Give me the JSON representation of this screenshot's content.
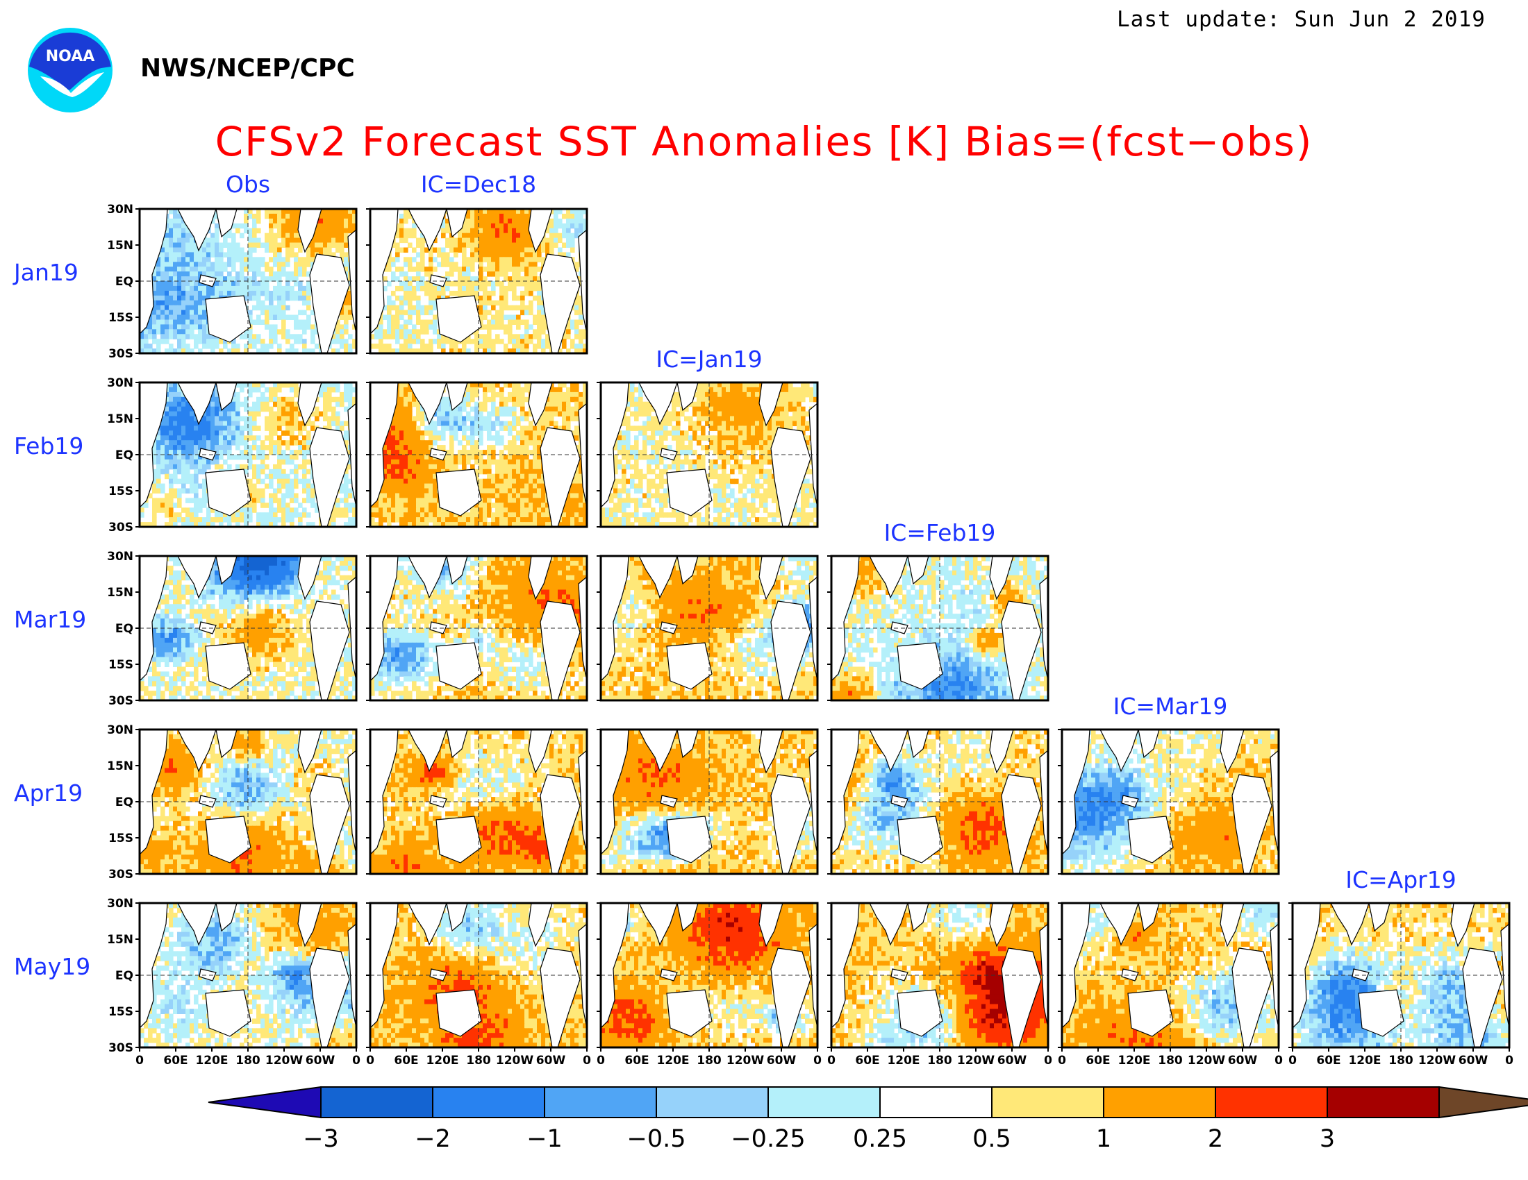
{
  "header": {
    "last_update": "Last update: Sun Jun 2 2019",
    "agency": "NWS/NCEP/CPC",
    "logo_text": "NOAA",
    "title": "CFSv2 Forecast SST Anomalies [K] Bias=(fcst−obs)"
  },
  "columns": [
    "Obs",
    "IC=Dec18",
    "IC=Jan19",
    "IC=Feb19",
    "IC=Mar19",
    "IC=Apr19"
  ],
  "rows": [
    "Jan19",
    "Feb19",
    "Mar19",
    "Apr19",
    "May19"
  ],
  "lat_ticks": [
    "30N",
    "15N",
    "EQ",
    "15S",
    "30S"
  ],
  "lon_ticks": [
    "0",
    "60E",
    "120E",
    "180",
    "120W",
    "60W",
    "0"
  ],
  "colorbar": {
    "unit": "K",
    "tick_labels": [
      "−3",
      "−2",
      "−1",
      "−0.5",
      "−0.25",
      "0.25",
      "0.5",
      "1",
      "2",
      "3"
    ],
    "colors": [
      "#1e0ab4",
      "#1464d2",
      "#2882f0",
      "#50a5f5",
      "#96d2fa",
      "#b4f0fa",
      "#ffffff",
      "#ffe878",
      "#ffa000",
      "#ff3200",
      "#a50000",
      "#6e4628"
    ]
  },
  "panels": [
    {
      "row": "Jan19",
      "col": "Obs",
      "seed": 11,
      "bias": 0.25
    },
    {
      "row": "Jan19",
      "col": "IC=Dec18",
      "seed": 12,
      "bias": 0.6
    },
    {
      "row": "Feb19",
      "col": "Obs",
      "seed": 21,
      "bias": 0.3
    },
    {
      "row": "Feb19",
      "col": "IC=Dec18",
      "seed": 22,
      "bias": 0.85
    },
    {
      "row": "Feb19",
      "col": "IC=Jan19",
      "seed": 23,
      "bias": 0.55
    },
    {
      "row": "Mar19",
      "col": "Obs",
      "seed": 31,
      "bias": 0.45
    },
    {
      "row": "Mar19",
      "col": "IC=Dec18",
      "seed": 32,
      "bias": 0.9
    },
    {
      "row": "Mar19",
      "col": "IC=Jan19",
      "seed": 33,
      "bias": 0.85
    },
    {
      "row": "Mar19",
      "col": "IC=Feb19",
      "seed": 34,
      "bias": 0.35
    },
    {
      "row": "Apr19",
      "col": "Obs",
      "seed": 41,
      "bias": 0.45
    },
    {
      "row": "Apr19",
      "col": "IC=Dec18",
      "seed": 42,
      "bias": 0.85
    },
    {
      "row": "Apr19",
      "col": "IC=Jan19",
      "seed": 43,
      "bias": 0.85
    },
    {
      "row": "Apr19",
      "col": "IC=Feb19",
      "seed": 44,
      "bias": 0.75
    },
    {
      "row": "Apr19",
      "col": "IC=Mar19",
      "seed": 45,
      "bias": 0.5
    },
    {
      "row": "May19",
      "col": "Obs",
      "seed": 51,
      "bias": 0.45
    },
    {
      "row": "May19",
      "col": "IC=Dec18",
      "seed": 52,
      "bias": 0.95
    },
    {
      "row": "May19",
      "col": "IC=Jan19",
      "seed": 53,
      "bias": 0.95
    },
    {
      "row": "May19",
      "col": "IC=Feb19",
      "seed": 54,
      "bias": 0.95
    },
    {
      "row": "May19",
      "col": "IC=Mar19",
      "seed": 55,
      "bias": 0.9
    },
    {
      "row": "May19",
      "col": "IC=Apr19",
      "seed": 56,
      "bias": 0.75
    }
  ]
}
